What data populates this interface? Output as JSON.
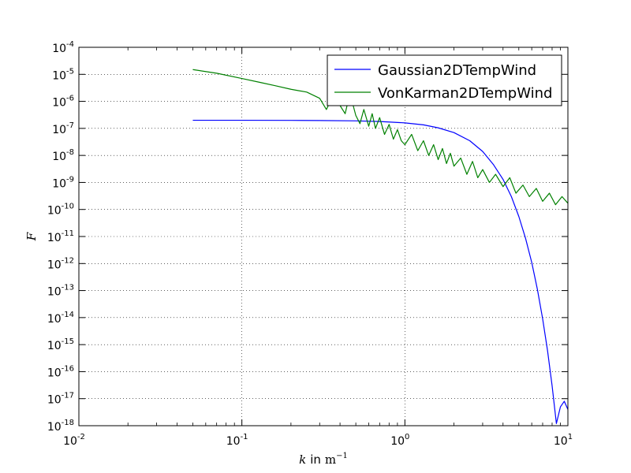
{
  "chart_data": {
    "type": "line",
    "xscale": "log",
    "yscale": "log",
    "xlim": [
      0.01,
      10
    ],
    "ylim": [
      1e-18,
      0.0001
    ],
    "grid": true,
    "legend_position": "top-right",
    "xlabel_var": "k",
    "xlabel_mid": "in",
    "xlabel_unit": "m",
    "xlabel_exp": "−1",
    "ylabel": "F",
    "x_ticks": [
      {
        "value": 0.01,
        "base": "10",
        "exp": "-2"
      },
      {
        "value": 0.1,
        "base": "10",
        "exp": "-1"
      },
      {
        "value": 1,
        "base": "10",
        "exp": "0"
      },
      {
        "value": 10,
        "base": "10",
        "exp": "1"
      }
    ],
    "y_ticks": [
      {
        "value": 0.0001,
        "base": "10",
        "exp": "-4"
      },
      {
        "value": 1e-05,
        "base": "10",
        "exp": "-5"
      },
      {
        "value": 1e-06,
        "base": "10",
        "exp": "-6"
      },
      {
        "value": 1e-07,
        "base": "10",
        "exp": "-7"
      },
      {
        "value": 1e-08,
        "base": "10",
        "exp": "-8"
      },
      {
        "value": 1e-09,
        "base": "10",
        "exp": "-9"
      },
      {
        "value": 1e-10,
        "base": "10",
        "exp": "-10"
      },
      {
        "value": 1e-11,
        "base": "10",
        "exp": "-11"
      },
      {
        "value": 1e-12,
        "base": "10",
        "exp": "-12"
      },
      {
        "value": 1e-13,
        "base": "10",
        "exp": "-13"
      },
      {
        "value": 1e-14,
        "base": "10",
        "exp": "-14"
      },
      {
        "value": 1e-15,
        "base": "10",
        "exp": "-15"
      },
      {
        "value": 1e-16,
        "base": "10",
        "exp": "-16"
      },
      {
        "value": 1e-17,
        "base": "10",
        "exp": "-17"
      },
      {
        "value": 1e-18,
        "base": "10",
        "exp": "-18"
      }
    ],
    "series": [
      {
        "name": "Gaussian2DTempWind",
        "color": "#0000ff",
        "x": [
          0.05,
          0.1,
          0.2,
          0.3,
          0.5,
          0.7,
          1.0,
          1.3,
          1.6,
          2.0,
          2.5,
          3.0,
          3.5,
          4.0,
          4.5,
          5.0,
          5.5,
          6.0,
          6.5,
          7.0,
          7.5,
          8.0,
          8.5,
          9.0,
          9.5,
          10.0
        ],
        "y": [
          2e-07,
          2e-07,
          1.98e-07,
          1.95e-07,
          1.9e-07,
          1.8e-07,
          1.6e-07,
          1.35e-07,
          1.05e-07,
          7e-08,
          3.5e-08,
          1.4e-08,
          4.5e-09,
          1.3e-09,
          3e-10,
          5.5e-11,
          8.5e-12,
          1.1e-12,
          1.1e-13,
          9e-15,
          6e-16,
          3e-17,
          1.2e-18,
          5e-18,
          8e-18,
          4e-18
        ]
      },
      {
        "name": "VonKarman2DTempWind",
        "color": "#008000",
        "x": [
          0.05,
          0.07,
          0.1,
          0.13,
          0.16,
          0.2,
          0.25,
          0.3,
          0.33,
          0.36,
          0.4,
          0.43,
          0.46,
          0.5,
          0.53,
          0.56,
          0.6,
          0.63,
          0.66,
          0.7,
          0.75,
          0.8,
          0.85,
          0.9,
          0.95,
          1.0,
          1.1,
          1.2,
          1.3,
          1.4,
          1.5,
          1.6,
          1.7,
          1.8,
          1.9,
          2.0,
          2.2,
          2.4,
          2.6,
          2.8,
          3.0,
          3.3,
          3.6,
          4.0,
          4.4,
          4.8,
          5.3,
          5.8,
          6.4,
          7.0,
          7.7,
          8.4,
          9.2,
          10.0
        ],
        "y": [
          1.5e-05,
          1.1e-05,
          7e-06,
          5e-06,
          3.8e-06,
          2.8e-06,
          2.2e-06,
          1.3e-06,
          5e-07,
          1.5e-06,
          7e-07,
          3.5e-07,
          2e-06,
          3e-07,
          1.5e-07,
          5e-07,
          1.2e-07,
          3.5e-07,
          1e-07,
          2.5e-07,
          6e-08,
          1.4e-07,
          4e-08,
          9e-08,
          3.5e-08,
          2.5e-08,
          6e-08,
          1.5e-08,
          3.5e-08,
          1e-08,
          2.5e-08,
          7e-09,
          1.8e-08,
          5e-09,
          1.2e-08,
          4e-09,
          8e-09,
          2e-09,
          6e-09,
          1.5e-09,
          3e-09,
          1e-09,
          2e-09,
          7e-10,
          1.5e-09,
          4e-10,
          8e-10,
          3e-10,
          6e-10,
          2e-10,
          4e-10,
          1.5e-10,
          3e-10,
          1.7e-10
        ]
      }
    ]
  }
}
